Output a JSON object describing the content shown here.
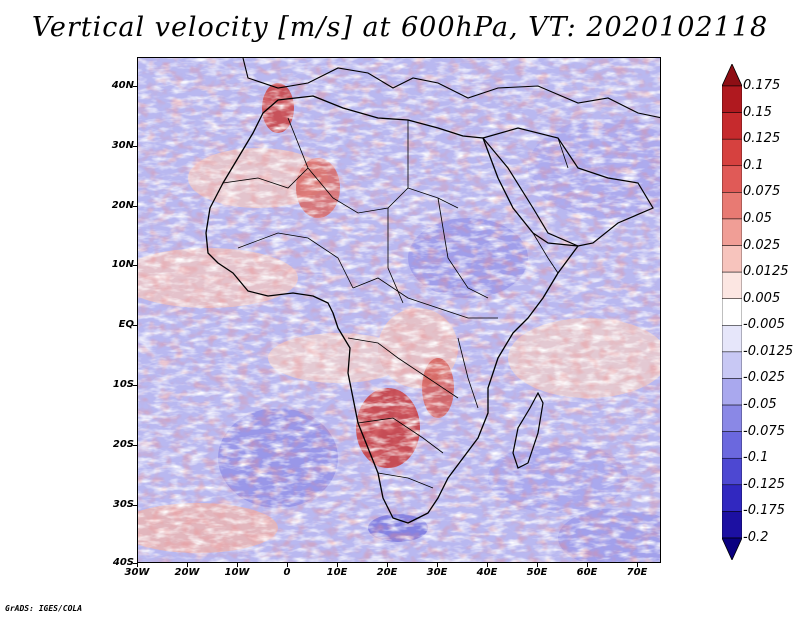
{
  "title": "Vertical velocity [m/s] at 600hPa, VT: 2020102118",
  "footer": "GrADS: IGES/COLA",
  "map": {
    "region": "Africa",
    "variable": "Vertical velocity",
    "units": "m/s",
    "level": "600hPa",
    "valid_time": "2020102118",
    "lat_labels": [
      "40N",
      "30N",
      "20N",
      "10N",
      "EQ",
      "10S",
      "20S",
      "30S",
      "40S"
    ],
    "lon_labels": [
      "30W",
      "20W",
      "10W",
      "0",
      "10E",
      "20E",
      "30E",
      "40E",
      "50E",
      "60E",
      "70E"
    ]
  },
  "colorbar": {
    "labels": [
      "0.175",
      "0.15",
      "0.125",
      "0.1",
      "0.075",
      "0.05",
      "0.025",
      "0.0125",
      "0.005",
      "-0.005",
      "-0.0125",
      "-0.025",
      "-0.05",
      "-0.075",
      "-0.1",
      "-0.125",
      "-0.175",
      "-0.2"
    ],
    "colors": [
      "#8e0e14",
      "#b0191f",
      "#c62a2d",
      "#d6413f",
      "#e05a57",
      "#e87a73",
      "#f09e96",
      "#f7c4bd",
      "#fce6e2",
      "#ffffff",
      "#e6e6fa",
      "#c8c8f4",
      "#a9a8ee",
      "#8a88e6",
      "#6b68de",
      "#4d48d2",
      "#3128c0",
      "#1c10a2",
      "#0a0080"
    ]
  }
}
